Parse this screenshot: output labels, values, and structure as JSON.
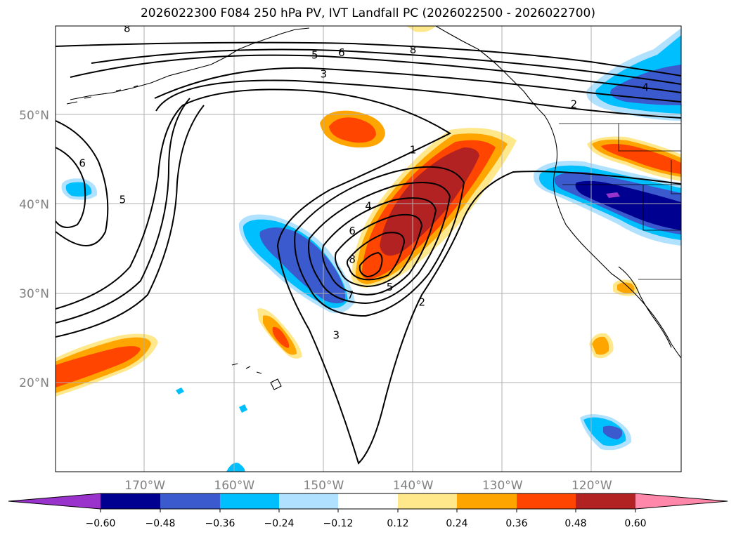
{
  "title": "2026022300 F084 250 hPa PV, IVT Landfall PC (2026022500 - 2026022700)",
  "colors": {
    "n_over": "#9933cc",
    "n60": "#000090",
    "n48": "#3a5acd",
    "n36": "#00bfff",
    "n24": "#b0e2ff",
    "zero": "#ffffff",
    "p12": "#ffe88c",
    "p24": "#ffa500",
    "p36": "#ff4500",
    "p48": "#b22222",
    "p_over": "#ff88aa",
    "contour": "#000000",
    "coast": "#000000",
    "grid": "#b0b0b0",
    "tick_label": "#808080"
  },
  "map": {
    "lon_min": -180,
    "lon_max": -110,
    "lat_min": 10,
    "lat_max": 60,
    "lon_ticks": [
      {
        "value": -170,
        "label": "170°W"
      },
      {
        "value": -160,
        "label": "160°W"
      },
      {
        "value": -150,
        "label": "150°W"
      },
      {
        "value": -140,
        "label": "140°W"
      },
      {
        "value": -130,
        "label": "130°W"
      },
      {
        "value": -120,
        "label": "120°W"
      }
    ],
    "lat_ticks": [
      {
        "value": 20,
        "label": "20°N"
      },
      {
        "value": 30,
        "label": "30°N"
      },
      {
        "value": 40,
        "label": "40°N"
      },
      {
        "value": 50,
        "label": "50°N"
      }
    ],
    "contour_labels": [
      {
        "text": "8",
        "lon": -172,
        "lat": 59.8
      },
      {
        "text": "5",
        "lon": -151,
        "lat": 56.8
      },
      {
        "text": "6",
        "lon": -148,
        "lat": 57.1
      },
      {
        "text": "3",
        "lon": -150,
        "lat": 54.7
      },
      {
        "text": "8",
        "lon": -140,
        "lat": 57.4
      },
      {
        "text": "2",
        "lon": -122,
        "lat": 51.3
      },
      {
        "text": "4",
        "lon": -114,
        "lat": 53.2
      },
      {
        "text": "6",
        "lon": -177,
        "lat": 44.7
      },
      {
        "text": "5",
        "lon": -172.5,
        "lat": 40.6
      },
      {
        "text": "1",
        "lon": -140,
        "lat": 46.2
      },
      {
        "text": "4",
        "lon": -145,
        "lat": 39.9
      },
      {
        "text": "6",
        "lon": -146.8,
        "lat": 37.1
      },
      {
        "text": "8",
        "lon": -146.8,
        "lat": 33.9
      },
      {
        "text": "7",
        "lon": -147,
        "lat": 29.9
      },
      {
        "text": "5",
        "lon": -142.6,
        "lat": 30.8
      },
      {
        "text": "2",
        "lon": -139,
        "lat": 29.1
      },
      {
        "text": "3",
        "lon": -148.6,
        "lat": 25.4
      }
    ]
  },
  "colorbar": {
    "ticks": [
      "−0.60",
      "−0.48",
      "−0.36",
      "−0.24",
      "−0.12",
      "0.12",
      "0.24",
      "0.36",
      "0.48",
      "0.60"
    ]
  }
}
